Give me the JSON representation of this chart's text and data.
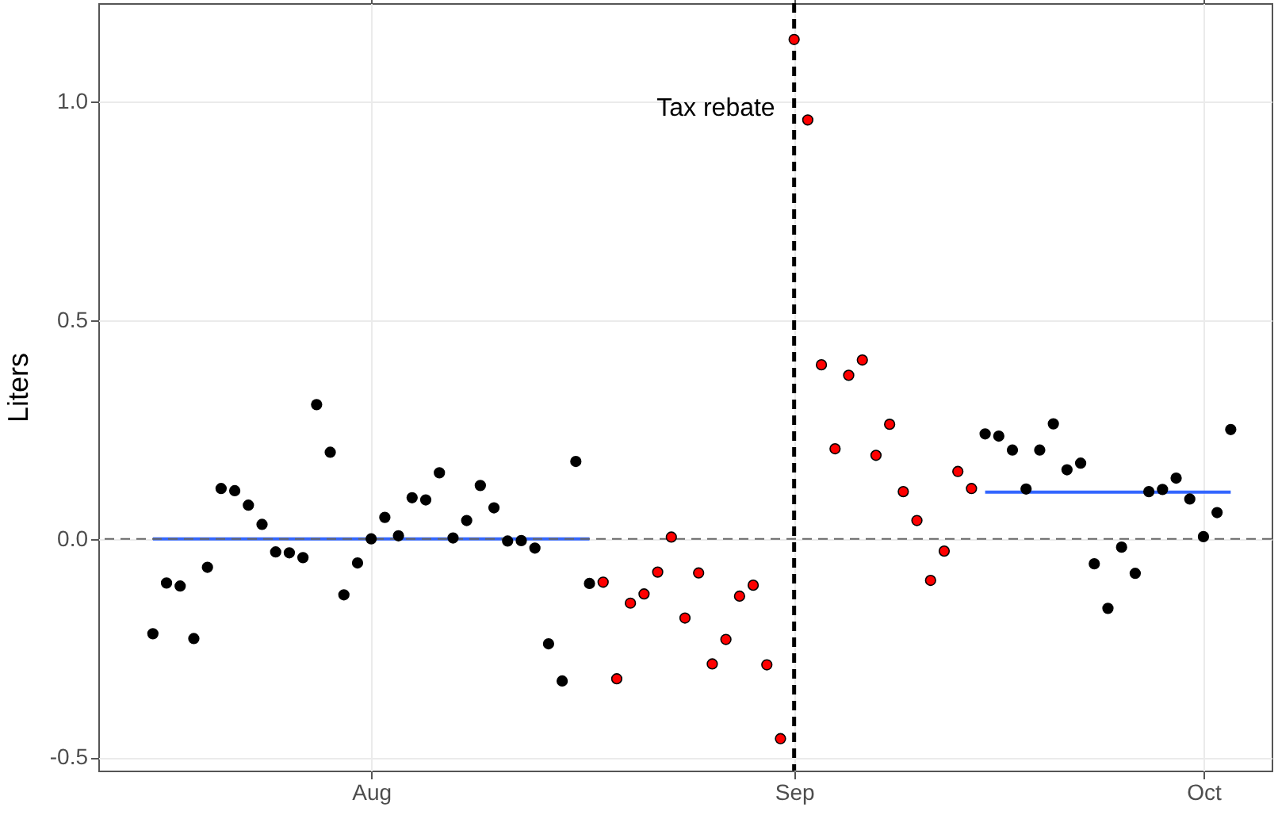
{
  "chart_data": {
    "type": "scatter",
    "ylabel": "Liters",
    "marker": "circle",
    "grid": true,
    "xlim": [
      "--07-12",
      "--10-06"
    ],
    "xticks": [
      {
        "value": "--08-01",
        "label": "Aug"
      },
      {
        "value": "--09-01",
        "label": "Sep"
      },
      {
        "value": "--10-01",
        "label": "Oct"
      }
    ],
    "ylim": [
      -0.53,
      1.225
    ],
    "yticks": [
      -0.5,
      {
        "value": 0,
        "label": "0.0"
      },
      0.5,
      {
        "value": 1,
        "label": "1.0"
      }
    ],
    "ref_lines": [
      {
        "axis": "y",
        "value": 0,
        "color": "#666666",
        "line_style": "dashed"
      },
      {
        "axis": "x",
        "value": "--09-01",
        "label": "Tax rebate",
        "color": "#000000",
        "line_style": "dashed"
      }
    ],
    "series": [
      {
        "color": "#000000",
        "x": [
          "--07-16",
          "--07-17",
          "--07-18",
          "--07-19",
          "--07-20",
          "--07-21",
          "--07-22",
          "--07-23",
          "--07-24",
          "--07-25",
          "--07-26",
          "--07-27",
          "--07-28",
          "--07-29",
          "--07-30",
          "--07-31",
          "--08-01",
          "--08-02",
          "--08-03",
          "--08-04",
          "--08-05",
          "--08-06",
          "--08-07",
          "--08-08",
          "--08-09",
          "--08-10",
          "--08-11",
          "--08-12",
          "--08-13",
          "--08-14",
          "--08-15",
          "--08-16",
          "--08-17"
        ],
        "values": [
          -0.217,
          -0.101,
          -0.108,
          -0.228,
          -0.065,
          0.115,
          0.11,
          0.077,
          0.033,
          -0.03,
          -0.032,
          -0.043,
          0.307,
          0.198,
          -0.128,
          -0.055,
          0.0,
          0.049,
          0.007,
          0.094,
          0.089,
          0.151,
          0.002,
          0.042,
          0.122,
          0.071,
          -0.005,
          -0.004,
          -0.021,
          -0.24,
          -0.325,
          0.177,
          -0.102
        ]
      },
      {
        "color": "#ff0000",
        "x": [
          "--08-18",
          "--08-19",
          "--08-20",
          "--08-21",
          "--08-22",
          "--08-23",
          "--08-24",
          "--08-25",
          "--08-26",
          "--08-27",
          "--08-28",
          "--08-29",
          "--08-30",
          "--08-31",
          "--09-01",
          "--09-02",
          "--09-03",
          "--09-04",
          "--09-05",
          "--09-06",
          "--09-07",
          "--09-08",
          "--09-09",
          "--09-10",
          "--09-11",
          "--09-12",
          "--09-13",
          "--09-14"
        ],
        "values": [
          -0.099,
          -0.32,
          -0.147,
          -0.126,
          -0.076,
          0.004,
          -0.181,
          -0.078,
          -0.286,
          -0.23,
          -0.131,
          -0.106,
          -0.288,
          -0.457,
          1.142,
          0.958,
          0.398,
          0.206,
          0.374,
          0.409,
          0.191,
          0.262,
          0.108,
          0.042,
          -0.095,
          -0.028,
          0.154,
          0.115
        ]
      },
      {
        "color": "#000000",
        "x": [
          "--09-15",
          "--09-16",
          "--09-17",
          "--09-18",
          "--09-19",
          "--09-20",
          "--09-21",
          "--09-22",
          "--09-23",
          "--09-24",
          "--09-25",
          "--09-26",
          "--09-27",
          "--09-28",
          "--09-29",
          "--09-30",
          "--10-01",
          "--10-02",
          "--10-03"
        ],
        "values": [
          0.24,
          0.235,
          0.203,
          0.114,
          0.203,
          0.263,
          0.158,
          0.173,
          -0.057,
          -0.159,
          -0.019,
          -0.079,
          0.108,
          0.113,
          0.139,
          0.091,
          0.005,
          0.06,
          0.25
        ]
      },
      {
        "type": "line",
        "marker": "none",
        "color": "#3366ff",
        "x": [
          "--07-16",
          "--08-17"
        ],
        "values": [
          0,
          0
        ]
      },
      {
        "type": "line",
        "marker": "none",
        "color": "#3366ff",
        "x": [
          "--09-15",
          "--10-03"
        ],
        "values": [
          0.107,
          0.107
        ]
      }
    ]
  }
}
